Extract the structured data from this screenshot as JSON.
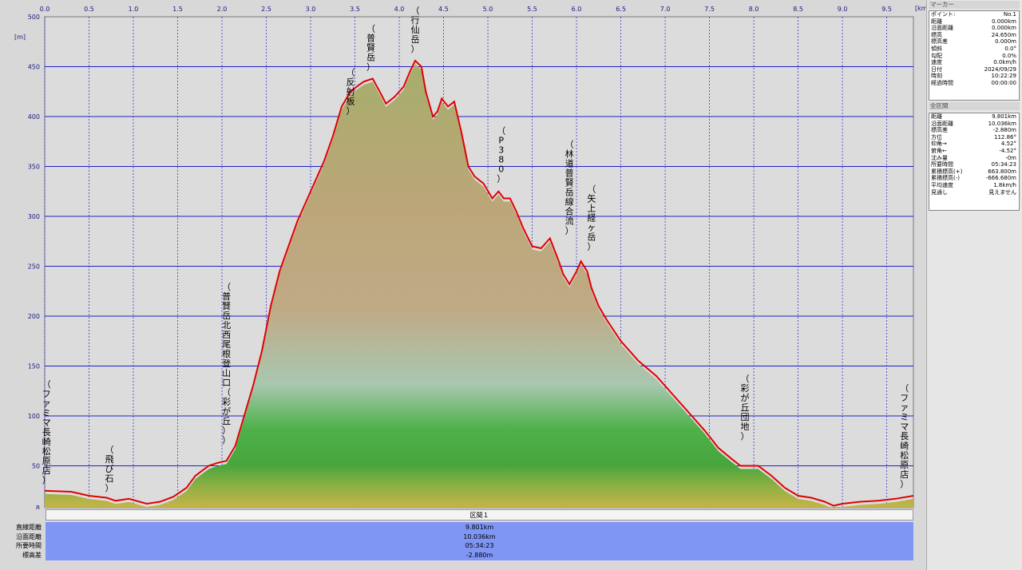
{
  "chart_data": {
    "type": "area",
    "x_unit_label": "[km]",
    "y_unit_label": "[m]",
    "xlim": [
      0,
      9.801
    ],
    "ylim": [
      8,
      500
    ],
    "x_ticks": [
      "0.0",
      "0.5",
      "1.0",
      "1.5",
      "2.0",
      "2.5",
      "3.0",
      "3.5",
      "4.0",
      "4.5",
      "5.0",
      "5.5",
      "6.0",
      "6.5",
      "7.0",
      "7.5",
      "8.0",
      "8.5",
      "9.0",
      "9.5"
    ],
    "y_ticks": [
      500,
      450,
      400,
      350,
      300,
      250,
      200,
      150,
      100,
      50,
      8
    ],
    "grid": true,
    "series": [
      {
        "line_color": "#e00000",
        "x": [
          0,
          0.3,
          0.5,
          0.7,
          0.8,
          0.95,
          1.15,
          1.3,
          1.45,
          1.6,
          1.7,
          1.85,
          1.95,
          2.05,
          2.15,
          2.25,
          2.35,
          2.45,
          2.55,
          2.65,
          2.75,
          2.85,
          2.95,
          3.05,
          3.15,
          3.25,
          3.35,
          3.45,
          3.55,
          3.6,
          3.7,
          3.78,
          3.85,
          3.95,
          4.05,
          4.12,
          4.18,
          4.25,
          4.3,
          4.38,
          4.43,
          4.48,
          4.55,
          4.62,
          4.7,
          4.78,
          4.85,
          4.95,
          5.05,
          5.12,
          5.18,
          5.25,
          5.32,
          5.4,
          5.5,
          5.6,
          5.7,
          5.8,
          5.85,
          5.92,
          6.0,
          6.05,
          6.12,
          6.17,
          6.25,
          6.35,
          6.5,
          6.7,
          6.9,
          7.1,
          7.3,
          7.45,
          7.6,
          7.75,
          7.85,
          7.95,
          8.05,
          8.2,
          8.35,
          8.5,
          8.65,
          8.8,
          8.9,
          9.0,
          9.2,
          9.4,
          9.6,
          9.801
        ],
        "values": [
          25,
          24,
          20,
          18,
          15,
          17,
          12,
          14,
          19,
          28,
          40,
          50,
          53,
          55,
          70,
          100,
          130,
          165,
          210,
          245,
          270,
          295,
          315,
          335,
          355,
          380,
          410,
          425,
          432,
          435,
          438,
          425,
          413,
          420,
          430,
          445,
          456,
          450,
          425,
          400,
          405,
          418,
          410,
          415,
          385,
          350,
          340,
          333,
          318,
          325,
          318,
          318,
          305,
          288,
          270,
          268,
          278,
          255,
          242,
          232,
          245,
          255,
          245,
          228,
          210,
          195,
          175,
          155,
          140,
          120,
          100,
          85,
          68,
          57,
          50,
          50,
          50,
          40,
          28,
          20,
          18,
          14,
          10,
          12,
          14,
          15,
          17,
          20
        ]
      }
    ],
    "annotations": [
      {
        "x": 0.02,
        "y": 28,
        "text": "（ファミマ長崎松原店）"
      },
      {
        "x": 0.73,
        "y": 20,
        "text": "（飛び石）"
      },
      {
        "x": 2.05,
        "y": 68,
        "text": "（普賢岳北西尾根登山口（彩が丘））"
      },
      {
        "x": 3.45,
        "y": 398,
        "text": "（反射板）"
      },
      {
        "x": 3.68,
        "y": 442,
        "text": "（普賢岳）"
      },
      {
        "x": 4.18,
        "y": 460,
        "text": "（行仙岳）"
      },
      {
        "x": 5.15,
        "y": 330,
        "text": "（P380）"
      },
      {
        "x": 5.92,
        "y": 278,
        "text": "（林道普賢岳線合流）"
      },
      {
        "x": 6.17,
        "y": 262,
        "text": "（矢上経ヶ岳）"
      },
      {
        "x": 7.9,
        "y": 72,
        "text": "（彩が丘団地）"
      },
      {
        "x": 9.7,
        "y": 24,
        "text": "（ファミマ長崎松原店）"
      }
    ]
  },
  "summary_table": {
    "header": "区間１",
    "rows": [
      {
        "label": "直線距離",
        "value": "9.801km"
      },
      {
        "label": "沿面距離",
        "value": "10.036km"
      },
      {
        "label": "所要時間",
        "value": "05:34:23"
      },
      {
        "label": "標高差",
        "value": "-2.880m"
      }
    ]
  },
  "side_panel": {
    "marker_title": "マーカー",
    "marker_rows": [
      {
        "k": "ポイント:",
        "v": "No.1"
      },
      {
        "k": "距離",
        "v": "0.000km"
      },
      {
        "k": "沿面距離",
        "v": "0.000km"
      },
      {
        "k": "標高",
        "v": "24.650m"
      },
      {
        "k": "標高差",
        "v": "0.000m"
      },
      {
        "k": "傾斜",
        "v": "0.0°"
      },
      {
        "k": "勾配",
        "v": "0.0%"
      },
      {
        "k": "速度",
        "v": "0.0km/h"
      },
      {
        "k": "日付",
        "v": "2024/09/29"
      },
      {
        "k": "時刻",
        "v": "10:22:29"
      },
      {
        "k": "経過時間",
        "v": "00:00:00"
      }
    ],
    "section_title": "全区間",
    "section_rows": [
      {
        "k": "距離",
        "v": "9.801km"
      },
      {
        "k": "沿面距離",
        "v": "10.036km"
      },
      {
        "k": "標高差",
        "v": "-2.880m"
      },
      {
        "k": "方位",
        "v": "112.86°"
      },
      {
        "k": "仰角→",
        "v": "4.52°"
      },
      {
        "k": "俯角←",
        "v": "-4.52°"
      },
      {
        "k": "沈み量",
        "v": "-0m"
      },
      {
        "k": "所要時間",
        "v": "05:34:23"
      },
      {
        "k": "累積標高(+)",
        "v": "663.800m"
      },
      {
        "k": "累積標高(-)",
        "v": "-666.680m"
      },
      {
        "k": "平均速度",
        "v": "1.8km/h"
      },
      {
        "k": "見通し",
        "v": "見えません"
      }
    ]
  }
}
